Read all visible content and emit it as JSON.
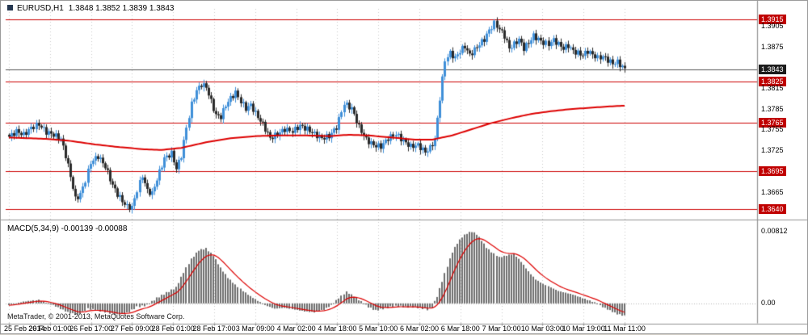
{
  "chart_data": [
    {
      "type": "candlestick",
      "title": "EURUSD,H1",
      "ohlc_label": "1.3848 1.3852 1.3839 1.3843",
      "ylim": [
        1.363,
        1.393
      ],
      "axis_label_min": 1.3635,
      "axis_label_step": 0.003,
      "resistance_support_levels": [
        1.3915,
        1.3825,
        1.3765,
        1.3695,
        1.364
      ],
      "current_price": 1.3843,
      "x_labels": [
        "25 Feb 2014",
        "26 Feb 01:00",
        "26 Feb 17:00",
        "27 Feb 09:00",
        "28 Feb 01:00",
        "28 Feb 17:00",
        "3 Mar 09:00",
        "4 Mar 02:00",
        "4 Mar 18:00",
        "5 Mar 10:00",
        "6 Mar 02:00",
        "6 Mar 18:00",
        "7 Mar 10:00",
        "10 Mar 03:00",
        "10 Mar 19:00",
        "11 Mar 11:00"
      ],
      "n_candles": 251,
      "close_path": [
        [
          0,
          1.3745
        ],
        [
          3,
          1.3753
        ],
        [
          6,
          1.3748
        ],
        [
          9,
          1.3758
        ],
        [
          12,
          1.3763
        ],
        [
          15,
          1.3752
        ],
        [
          18,
          1.3748
        ],
        [
          21,
          1.3742
        ],
        [
          23,
          1.3718
        ],
        [
          25,
          1.3688
        ],
        [
          27,
          1.3655
        ],
        [
          29,
          1.3662
        ],
        [
          31,
          1.3682
        ],
        [
          33,
          1.3708
        ],
        [
          36,
          1.3717
        ],
        [
          39,
          1.3702
        ],
        [
          42,
          1.3675
        ],
        [
          44,
          1.3662
        ],
        [
          46,
          1.3652
        ],
        [
          48,
          1.3644
        ],
        [
          50,
          1.3643
        ],
        [
          52,
          1.3668
        ],
        [
          54,
          1.3689
        ],
        [
          56,
          1.3667
        ],
        [
          58,
          1.3663
        ],
        [
          60,
          1.3684
        ],
        [
          63,
          1.3714
        ],
        [
          66,
          1.3721
        ],
        [
          68,
          1.3699
        ],
        [
          70,
          1.3718
        ],
        [
          72,
          1.3758
        ],
        [
          74,
          1.3792
        ],
        [
          76,
          1.3812
        ],
        [
          78,
          1.3821
        ],
        [
          80,
          1.3817
        ],
        [
          82,
          1.3796
        ],
        [
          84,
          1.3776
        ],
        [
          86,
          1.3774
        ],
        [
          88,
          1.3791
        ],
        [
          90,
          1.3801
        ],
        [
          92,
          1.3809
        ],
        [
          94,
          1.3796
        ],
        [
          96,
          1.3786
        ],
        [
          98,
          1.3791
        ],
        [
          100,
          1.3779
        ],
        [
          103,
          1.3763
        ],
        [
          106,
          1.3743
        ],
        [
          109,
          1.3749
        ],
        [
          112,
          1.3756
        ],
        [
          115,
          1.3753
        ],
        [
          118,
          1.3761
        ],
        [
          121,
          1.3756
        ],
        [
          124,
          1.3749
        ],
        [
          127,
          1.3743
        ],
        [
          130,
          1.3746
        ],
        [
          133,
          1.3759
        ],
        [
          136,
          1.3793
        ],
        [
          139,
          1.3786
        ],
        [
          142,
          1.3759
        ],
        [
          145,
          1.3741
        ],
        [
          148,
          1.3733
        ],
        [
          151,
          1.3731
        ],
        [
          154,
          1.3743
        ],
        [
          157,
          1.3749
        ],
        [
          160,
          1.3739
        ],
        [
          163,
          1.3731
        ],
        [
          166,
          1.3733
        ],
        [
          169,
          1.3723
        ],
        [
          171,
          1.3729
        ],
        [
          173,
          1.3741
        ],
        [
          175,
          1.3801
        ],
        [
          177,
          1.3856
        ],
        [
          179,
          1.3866
        ],
        [
          181,
          1.3859
        ],
        [
          183,
          1.3869
        ],
        [
          185,
          1.3876
        ],
        [
          187,
          1.3863
        ],
        [
          189,
          1.3871
        ],
        [
          191,
          1.3879
        ],
        [
          193,
          1.3886
        ],
        [
          195,
          1.3899
        ],
        [
          197,
          1.3909
        ],
        [
          199,
          1.3901
        ],
        [
          201,
          1.3891
        ],
        [
          203,
          1.3873
        ],
        [
          205,
          1.3879
        ],
        [
          207,
          1.3886
        ],
        [
          209,
          1.3873
        ],
        [
          211,
          1.3881
        ],
        [
          213,
          1.3891
        ],
        [
          215,
          1.3886
        ],
        [
          217,
          1.3881
        ],
        [
          219,
          1.3879
        ],
        [
          221,
          1.3885
        ],
        [
          223,
          1.3879
        ],
        [
          225,
          1.3873
        ],
        [
          227,
          1.3877
        ],
        [
          229,
          1.3869
        ],
        [
          231,
          1.3866
        ],
        [
          233,
          1.3863
        ],
        [
          235,
          1.3869
        ],
        [
          237,
          1.3864
        ],
        [
          239,
          1.3859
        ],
        [
          241,
          1.3861
        ],
        [
          243,
          1.3856
        ],
        [
          245,
          1.3851
        ],
        [
          247,
          1.3853
        ],
        [
          249,
          1.3846
        ],
        [
          250,
          1.3843
        ]
      ],
      "ma_path": [
        [
          0,
          1.3744
        ],
        [
          15,
          1.3742
        ],
        [
          25,
          1.3739
        ],
        [
          35,
          1.3734
        ],
        [
          45,
          1.373
        ],
        [
          55,
          1.3727
        ],
        [
          62,
          1.3726
        ],
        [
          70,
          1.3729
        ],
        [
          80,
          1.3737
        ],
        [
          90,
          1.3743
        ],
        [
          100,
          1.3746
        ],
        [
          110,
          1.3747
        ],
        [
          120,
          1.3747
        ],
        [
          130,
          1.3746
        ],
        [
          138,
          1.3748
        ],
        [
          146,
          1.3747
        ],
        [
          155,
          1.3744
        ],
        [
          165,
          1.3741
        ],
        [
          172,
          1.3741
        ],
        [
          180,
          1.3747
        ],
        [
          188,
          1.3756
        ],
        [
          196,
          1.3765
        ],
        [
          204,
          1.3772
        ],
        [
          212,
          1.3778
        ],
        [
          220,
          1.3782
        ],
        [
          228,
          1.3785
        ],
        [
          236,
          1.3787
        ],
        [
          244,
          1.3789
        ],
        [
          250,
          1.379
        ]
      ]
    },
    {
      "type": "bar",
      "title": "MACD(5,34,9)",
      "label": "MACD(5,34,9) -0.00139 -0.00088",
      "main_value": -0.00139,
      "signal_value": -0.00088,
      "ylim": [
        -0.0022,
        0.009
      ],
      "y_ticks": [
        {
          "value": 0.00812,
          "label": "0.00812"
        },
        {
          "value": 0.0,
          "label": "0.00"
        }
      ],
      "hist_path": [
        [
          0,
          -0.0002
        ],
        [
          6,
          0.0002
        ],
        [
          12,
          0.0004
        ],
        [
          18,
          -0.0002
        ],
        [
          24,
          -0.001
        ],
        [
          28,
          -0.0013
        ],
        [
          32,
          -0.0006
        ],
        [
          38,
          -0.0009
        ],
        [
          44,
          -0.0013
        ],
        [
          48,
          -0.0011
        ],
        [
          52,
          -0.0004
        ],
        [
          56,
          -0.0002
        ],
        [
          60,
          0.0006
        ],
        [
          64,
          0.0012
        ],
        [
          68,
          0.0018
        ],
        [
          71,
          0.0035
        ],
        [
          74,
          0.005
        ],
        [
          77,
          0.006
        ],
        [
          80,
          0.0062
        ],
        [
          83,
          0.0054
        ],
        [
          86,
          0.004
        ],
        [
          89,
          0.0029
        ],
        [
          92,
          0.0021
        ],
        [
          95,
          0.0014
        ],
        [
          98,
          0.0008
        ],
        [
          101,
          0.0003
        ],
        [
          104,
          -0.0002
        ],
        [
          108,
          -0.0006
        ],
        [
          112,
          -0.0005
        ],
        [
          116,
          -0.0007
        ],
        [
          120,
          -0.0009
        ],
        [
          124,
          -0.001
        ],
        [
          128,
          -0.0007
        ],
        [
          131,
          -0.0002
        ],
        [
          134,
          0.0006
        ],
        [
          137,
          0.0013
        ],
        [
          140,
          0.0008
        ],
        [
          143,
          0.0002
        ],
        [
          146,
          -0.0004
        ],
        [
          149,
          -0.0008
        ],
        [
          152,
          -0.0006
        ],
        [
          155,
          -0.0004
        ],
        [
          158,
          -0.0003
        ],
        [
          161,
          -0.0004
        ],
        [
          164,
          -0.0004
        ],
        [
          167,
          -0.0005
        ],
        [
          170,
          -0.0007
        ],
        [
          172,
          -0.0004
        ],
        [
          174,
          0.0008
        ],
        [
          176,
          0.0025
        ],
        [
          178,
          0.0042
        ],
        [
          180,
          0.0058
        ],
        [
          182,
          0.0068
        ],
        [
          184,
          0.0075
        ],
        [
          186,
          0.0079
        ],
        [
          188,
          0.0081
        ],
        [
          190,
          0.0078
        ],
        [
          192,
          0.0071
        ],
        [
          194,
          0.0063
        ],
        [
          196,
          0.0058
        ],
        [
          199,
          0.0052
        ],
        [
          202,
          0.0054
        ],
        [
          205,
          0.0056
        ],
        [
          208,
          0.0047
        ],
        [
          211,
          0.0036
        ],
        [
          214,
          0.0027
        ],
        [
          217,
          0.0022
        ],
        [
          220,
          0.0018
        ],
        [
          223,
          0.0014
        ],
        [
          226,
          0.0012
        ],
        [
          229,
          0.001
        ],
        [
          232,
          0.0007
        ],
        [
          235,
          0.0004
        ],
        [
          238,
          0.0001
        ],
        [
          241,
          -0.0004
        ],
        [
          244,
          -0.0008
        ],
        [
          247,
          -0.0012
        ],
        [
          250,
          -0.0014
        ]
      ]
    }
  ],
  "footer": {
    "copyright": "MetaTrader, © 2001-2013, MetaQuotes Software Corp."
  },
  "colors": {
    "bull": "#3f8fd8",
    "bear": "#2a2a2a",
    "ma": "#dd0000",
    "level_line": "#cc0000",
    "level_tag_bg": "#c00000",
    "current_line": "#555555",
    "current_tag_bg": "#1c1c1c",
    "grid": "#c9c9c9",
    "hist": "#6e6e6e",
    "signal": "#dd0000",
    "frame": "#909090",
    "axis_text": "#000000"
  }
}
